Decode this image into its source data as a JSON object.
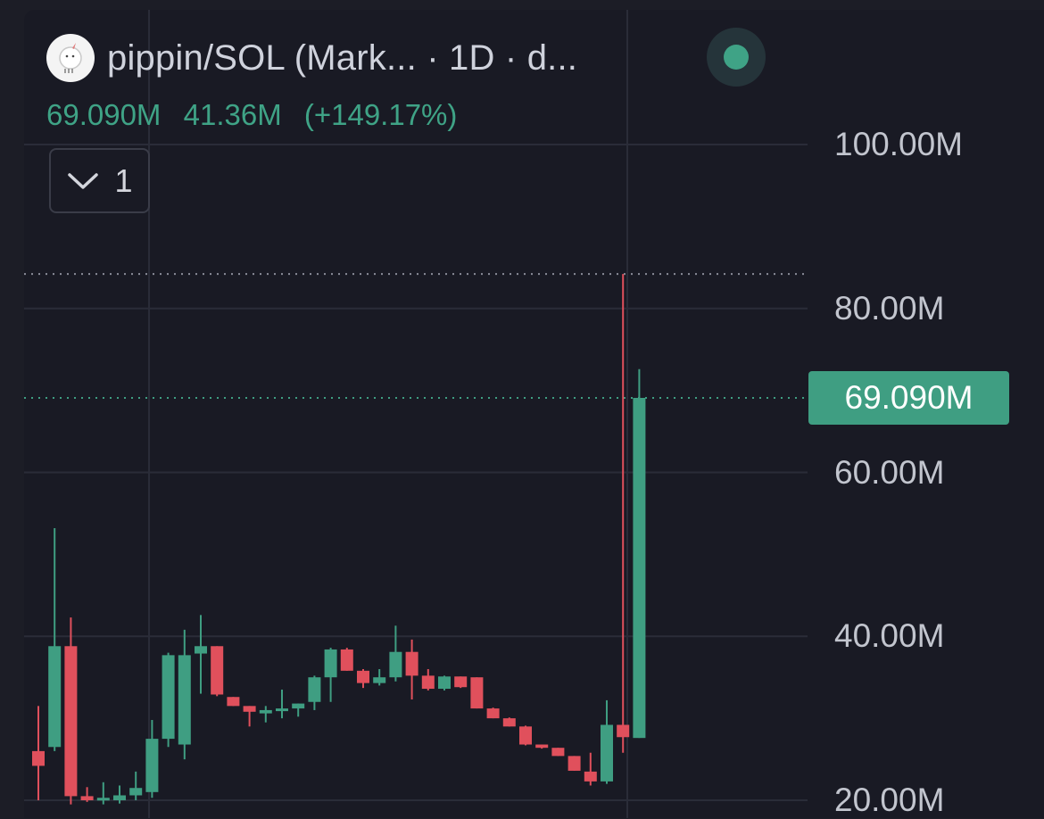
{
  "header": {
    "pair_title": "pippin/SOL (Mark...  · 1D · d...",
    "avatar_icon": "pippin-unicorn-avatar-icon",
    "status_icon": "live-status-dot-icon",
    "status_color": "#3fa386"
  },
  "stats": {
    "current": "69.090M",
    "change": "41.36M",
    "change_pct": "(+149.17%)"
  },
  "indicator_toggle": {
    "icon": "chevron-down-icon",
    "count": "1"
  },
  "price_tag": {
    "label": "69.090M",
    "value": 69.09,
    "color": "#3f9e82"
  },
  "colors": {
    "up": "#3f9e82",
    "down": "#e0505c",
    "background": "#191a24",
    "grid": "#2a2c38"
  },
  "chart_data": {
    "type": "candlestick",
    "y_unit": "M",
    "ylim": [
      20,
      100
    ],
    "y_ticks": [
      {
        "value": 100,
        "label": "100.00M"
      },
      {
        "value": 80,
        "label": "80.00M"
      },
      {
        "value": 60,
        "label": "60.00M"
      },
      {
        "value": 40,
        "label": "40.00M"
      },
      {
        "value": 20,
        "label": "20.00M"
      }
    ],
    "high_line": 84.2,
    "current_line": 69.09,
    "candles": [
      {
        "o": 26.0,
        "h": 31.5,
        "l": 20.0,
        "c": 24.2
      },
      {
        "o": 26.5,
        "h": 53.2,
        "l": 26.0,
        "c": 38.8
      },
      {
        "o": 38.8,
        "h": 42.3,
        "l": 19.5,
        "c": 20.5
      },
      {
        "o": 20.5,
        "h": 21.6,
        "l": 19.8,
        "c": 20.0
      },
      {
        "o": 20.0,
        "h": 22.2,
        "l": 19.5,
        "c": 20.3
      },
      {
        "o": 20.0,
        "h": 21.8,
        "l": 19.6,
        "c": 20.6
      },
      {
        "o": 20.6,
        "h": 23.5,
        "l": 20.0,
        "c": 21.5
      },
      {
        "o": 21.0,
        "h": 29.8,
        "l": 20.3,
        "c": 27.5
      },
      {
        "o": 27.5,
        "h": 38.0,
        "l": 26.5,
        "c": 37.7
      },
      {
        "o": 26.8,
        "h": 40.8,
        "l": 25.0,
        "c": 37.7
      },
      {
        "o": 37.9,
        "h": 42.6,
        "l": 33.0,
        "c": 38.8
      },
      {
        "o": 38.8,
        "h": 38.8,
        "l": 32.7,
        "c": 32.9
      },
      {
        "o": 32.6,
        "h": 32.6,
        "l": 31.5,
        "c": 31.5
      },
      {
        "o": 31.5,
        "h": 31.5,
        "l": 29.0,
        "c": 30.8
      },
      {
        "o": 30.6,
        "h": 31.5,
        "l": 29.5,
        "c": 31.0
      },
      {
        "o": 31.0,
        "h": 33.5,
        "l": 30.0,
        "c": 31.2
      },
      {
        "o": 31.2,
        "h": 31.8,
        "l": 30.2,
        "c": 31.8
      },
      {
        "o": 32.0,
        "h": 35.2,
        "l": 31.0,
        "c": 35.0
      },
      {
        "o": 35.0,
        "h": 38.6,
        "l": 32.0,
        "c": 38.4
      },
      {
        "o": 38.4,
        "h": 38.6,
        "l": 35.8,
        "c": 35.8
      },
      {
        "o": 35.8,
        "h": 36.0,
        "l": 33.7,
        "c": 34.3
      },
      {
        "o": 34.3,
        "h": 36.0,
        "l": 34.0,
        "c": 35.0
      },
      {
        "o": 35.0,
        "h": 41.3,
        "l": 34.5,
        "c": 38.1
      },
      {
        "o": 38.1,
        "h": 39.6,
        "l": 32.3,
        "c": 35.2
      },
      {
        "o": 35.2,
        "h": 36.0,
        "l": 33.4,
        "c": 33.6
      },
      {
        "o": 33.6,
        "h": 35.2,
        "l": 33.4,
        "c": 35.1
      },
      {
        "o": 35.1,
        "h": 35.1,
        "l": 33.7,
        "c": 33.8
      },
      {
        "o": 35.0,
        "h": 35.0,
        "l": 31.2,
        "c": 31.2
      },
      {
        "o": 31.2,
        "h": 31.3,
        "l": 30.0,
        "c": 30.0
      },
      {
        "o": 30.0,
        "h": 30.1,
        "l": 29.0,
        "c": 29.0
      },
      {
        "o": 29.0,
        "h": 29.1,
        "l": 26.7,
        "c": 26.8
      },
      {
        "o": 26.8,
        "h": 26.8,
        "l": 26.3,
        "c": 26.4
      },
      {
        "o": 26.4,
        "h": 26.4,
        "l": 25.4,
        "c": 25.4
      },
      {
        "o": 25.4,
        "h": 25.4,
        "l": 23.6,
        "c": 23.6
      },
      {
        "o": 23.5,
        "h": 25.8,
        "l": 21.8,
        "c": 22.3
      },
      {
        "o": 22.3,
        "h": 32.2,
        "l": 22.0,
        "c": 29.2
      },
      {
        "o": 29.2,
        "h": 84.2,
        "l": 25.8,
        "c": 27.7
      },
      {
        "o": 27.6,
        "h": 72.6,
        "l": 27.6,
        "c": 69.09
      }
    ]
  }
}
